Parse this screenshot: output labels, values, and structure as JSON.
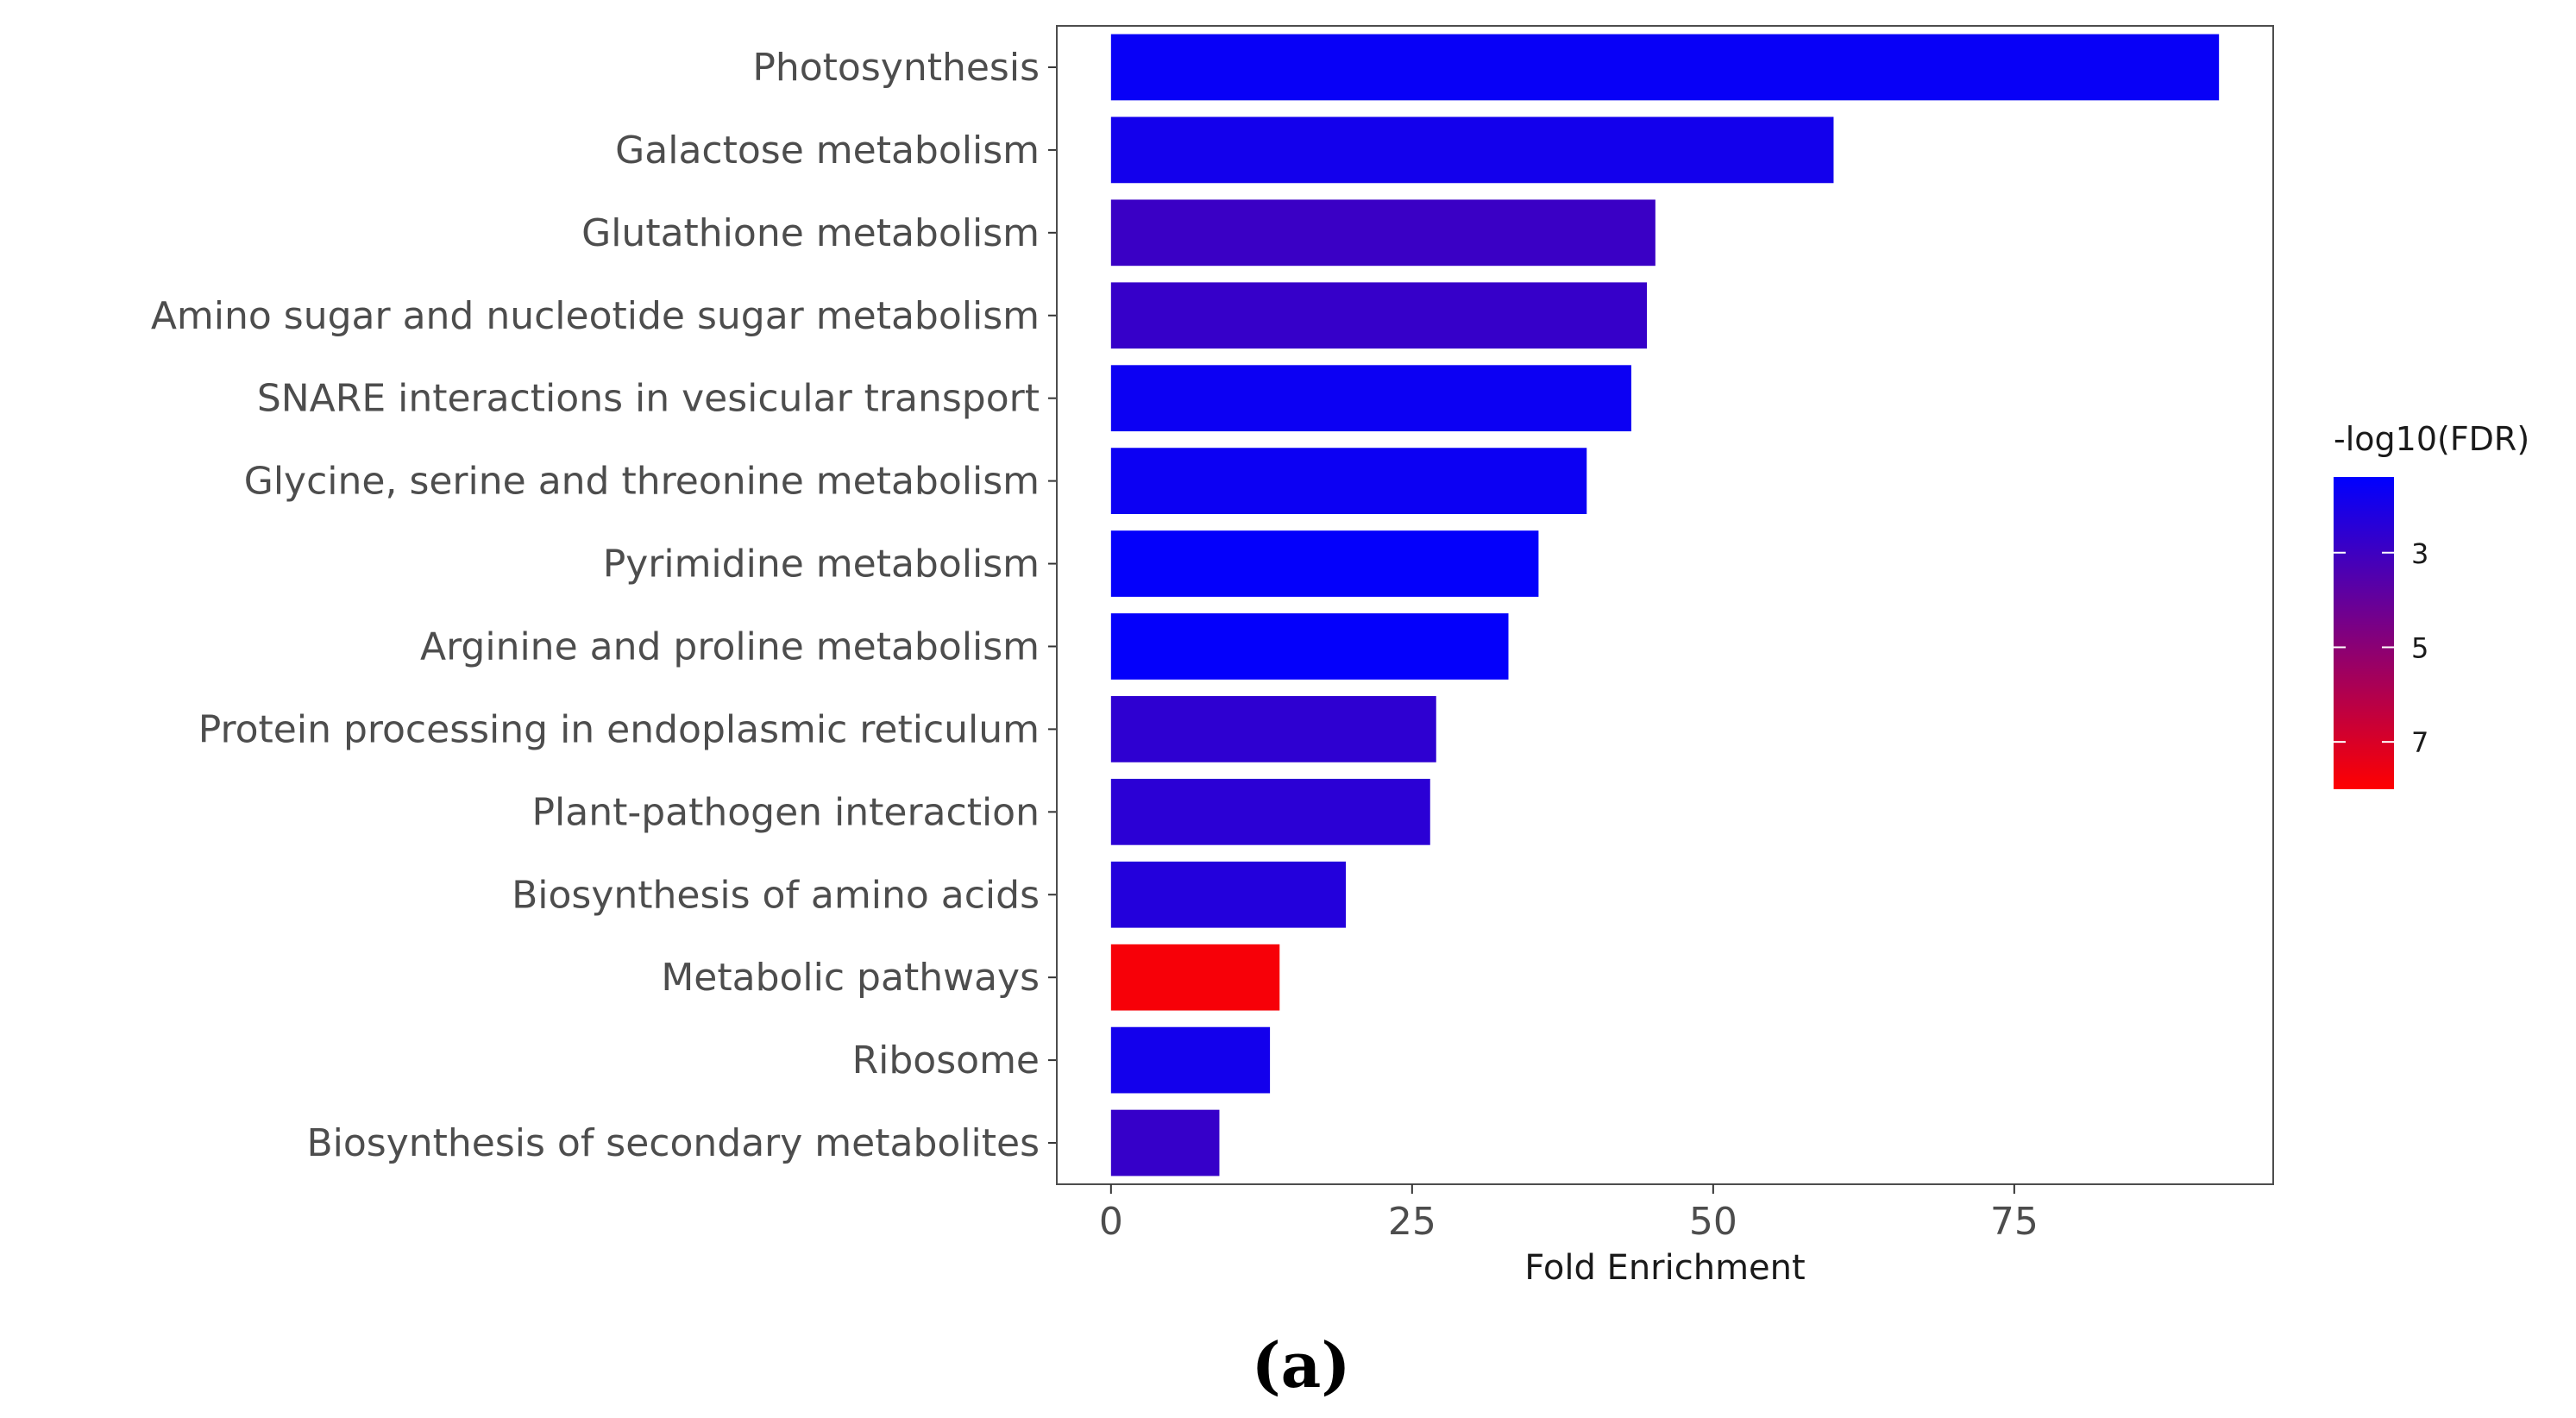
{
  "chart_data": {
    "type": "bar",
    "orientation": "horizontal",
    "categories": [
      "Photosynthesis",
      "Galactose metabolism",
      "Glutathione metabolism",
      "Amino sugar and nucleotide sugar metabolism",
      "SNARE interactions in vesicular transport",
      "Glycine, serine and threonine metabolism",
      "Pyrimidine metabolism",
      "Arginine and proline metabolism",
      "Protein processing in endoplasmic reticulum",
      "Plant-pathogen interaction",
      "Biosynthesis of amino acids",
      "Metabolic pathways",
      "Ribosome",
      "Biosynthesis of secondary metabolites"
    ],
    "values": [
      92,
      60,
      45.2,
      44.5,
      43.2,
      39.5,
      35.5,
      33,
      27,
      26.5,
      19.5,
      14,
      13.2,
      9
    ],
    "neg_log10_fdr": [
      1.6,
      1.9,
      2.9,
      2.8,
      1.7,
      1.7,
      1.5,
      1.5,
      2.6,
      2.5,
      2.3,
      7.8,
      1.9,
      2.8
    ],
    "xlabel": "Fold Enrichment",
    "ylabel": "",
    "xlim": [
      -4.5,
      96.5
    ],
    "xticks": [
      0,
      25,
      50,
      75
    ],
    "grid": false,
    "legend": {
      "title": "-log10(FDR)",
      "position": "right",
      "range": [
        1.4,
        8.0
      ],
      "ticks": [
        3,
        5,
        7
      ],
      "color_low": "#0000ff",
      "color_high": "#ff0000"
    },
    "caption": "(a)"
  }
}
